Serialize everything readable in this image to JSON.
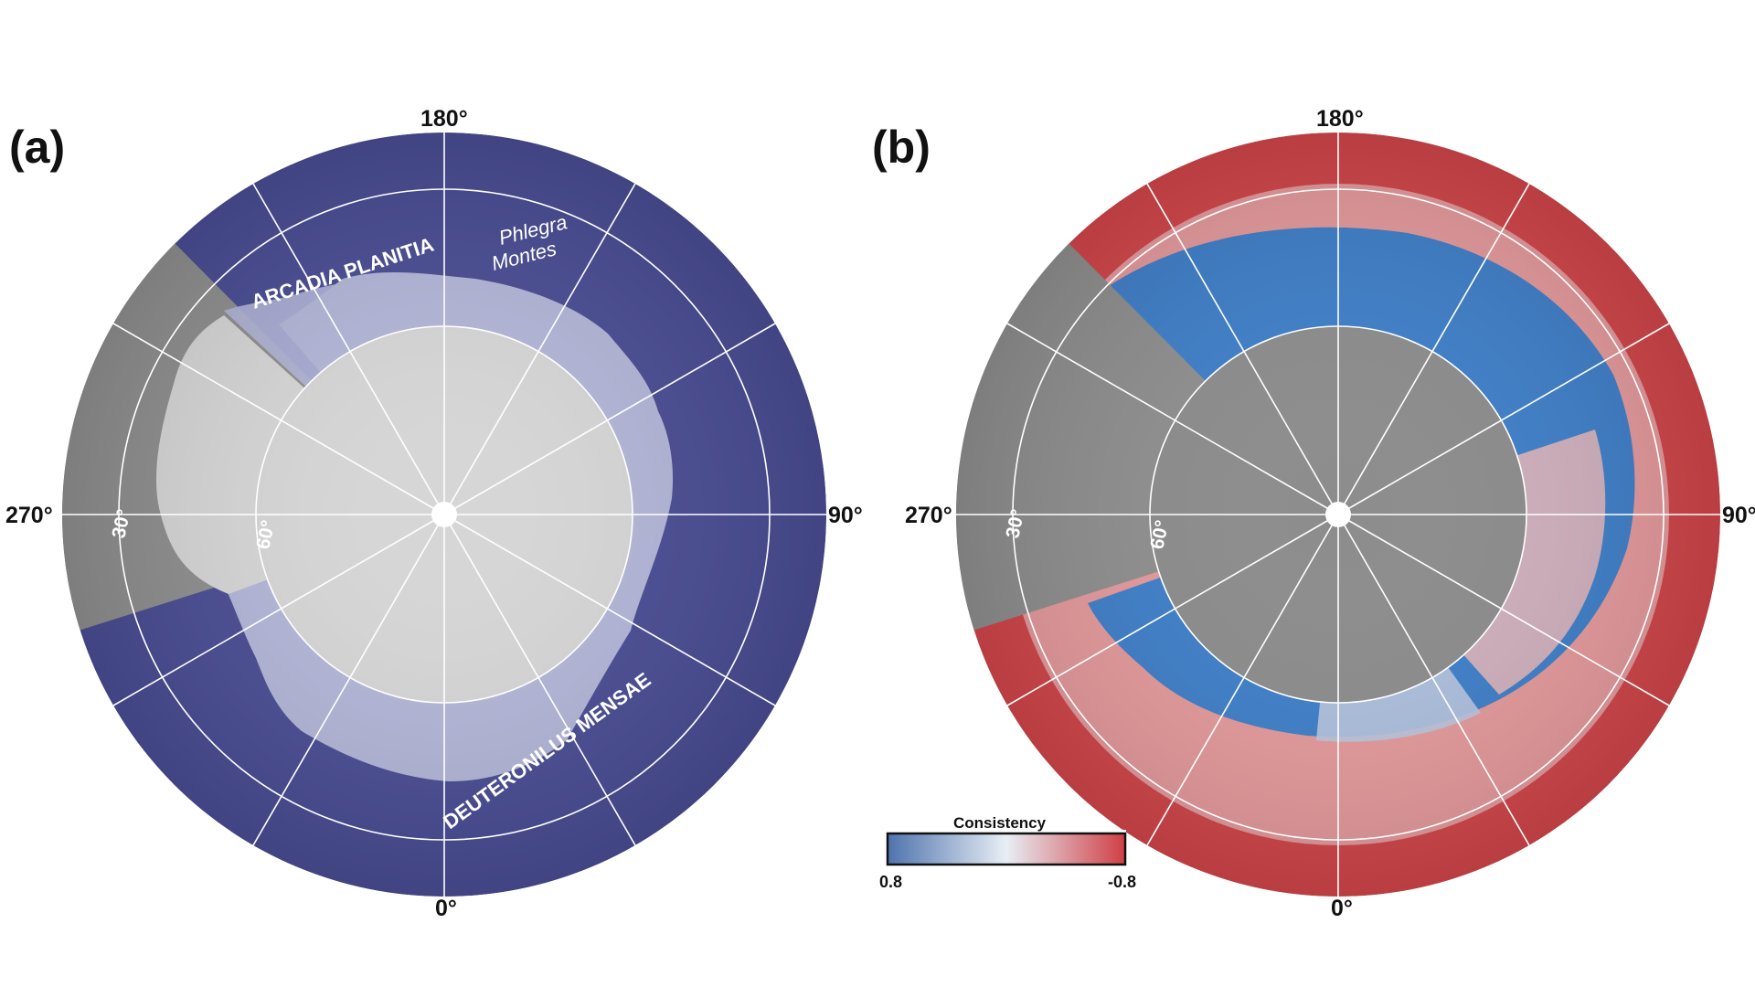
{
  "panels": [
    {
      "letter": "(a)",
      "lon_labels": {
        "top": "180°",
        "left": "270°",
        "right": "90°",
        "bottom": "0°"
      },
      "lat_labels": {
        "outer": "30°",
        "inner": "60°"
      },
      "regions": {
        "arcadia": "ARCADIA PLANITIA",
        "phlegra_1": "Phlegra",
        "phlegra_2": "Montes",
        "deuteronilus": "DEUTERONILUS MENSAE"
      },
      "colors": {
        "ice": "#4a4d94",
        "light": "#b3b6d8",
        "core": "#d6d6d6",
        "terrain": "#8f8f8f"
      }
    },
    {
      "letter": "(b)",
      "lon_labels": {
        "top": "180°",
        "left": "270°",
        "right": "90°",
        "bottom": "0°"
      },
      "lat_labels": {
        "outer": "30°",
        "inner": "60°"
      },
      "colors": {
        "positive": "#3f7fc9",
        "negative": "#d2464a",
        "core": "#8c8c8c",
        "terrain": "#8f8f8f"
      }
    }
  ],
  "colorbar": {
    "title": "Consistency",
    "min_label": "0.8",
    "max_label": "-0.8",
    "range": [
      0.8,
      -0.8
    ],
    "colors": [
      "#4f73ad",
      "#e8eef5",
      "#cf3f45"
    ]
  }
}
